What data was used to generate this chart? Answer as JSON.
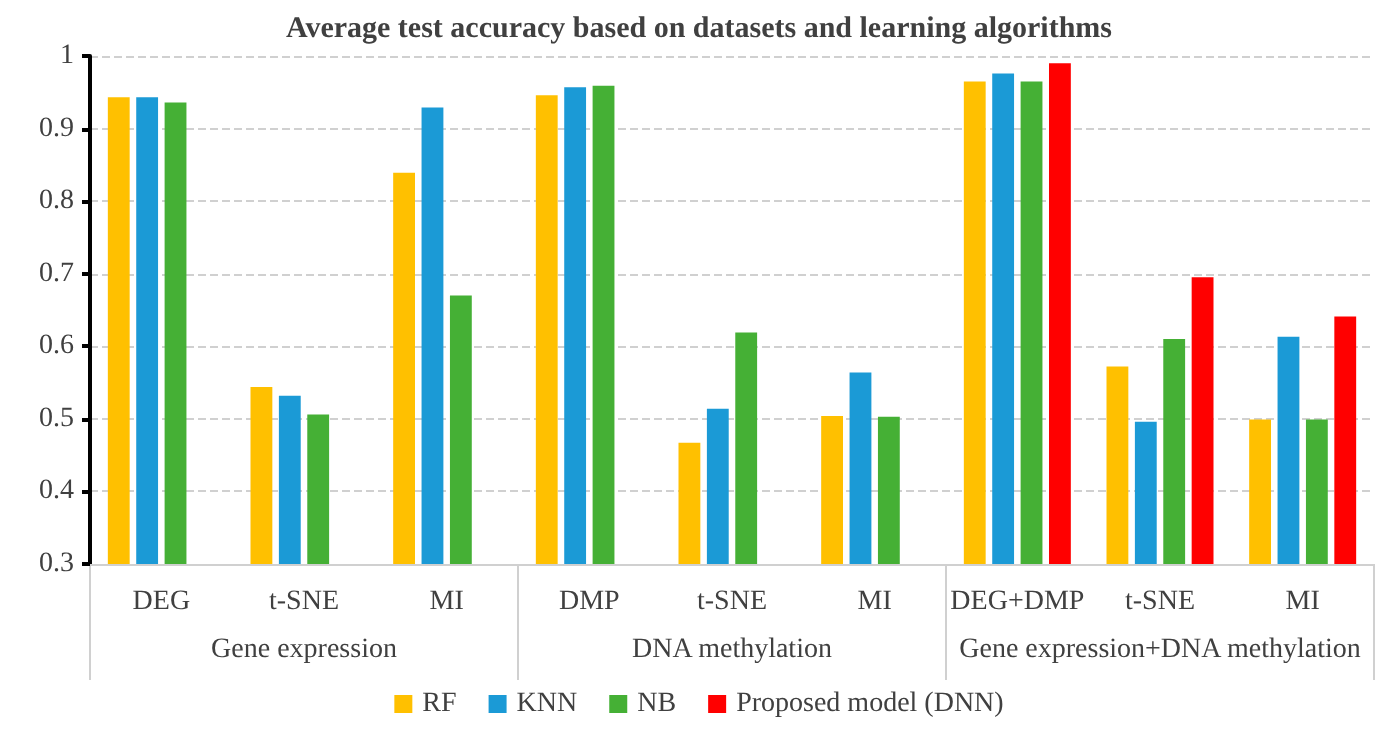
{
  "chart_data": {
    "type": "bar",
    "title": "Average test accuracy based on datasets and learning algorithms",
    "categories": [
      "DEG",
      "t-SNE",
      "MI",
      "DMP",
      "t-SNE",
      "MI",
      "DEG+DMP",
      "t-SNE",
      "MI"
    ],
    "series": [
      {
        "name": "RF",
        "color": "#ffc000",
        "values": [
          0.943,
          0.544,
          0.839,
          0.946,
          0.467,
          0.504,
          0.965,
          0.572,
          0.499
        ]
      },
      {
        "name": "KNN",
        "color": "#1b9ad6",
        "values": [
          0.943,
          0.532,
          0.929,
          0.957,
          0.514,
          0.564,
          0.976,
          0.496,
          0.613
        ]
      },
      {
        "name": "NB",
        "color": "#45b035",
        "values": [
          0.936,
          0.506,
          0.67,
          0.959,
          0.619,
          0.503,
          0.965,
          0.61,
          0.499
        ]
      },
      {
        "name": "Proposed model (DNN)",
        "color": "#ff0000",
        "values": [
          null,
          null,
          null,
          null,
          null,
          null,
          0.99,
          0.695,
          0.641
        ]
      }
    ],
    "annotations": [
      "Gene expression",
      "DNA methylation",
      "Gene expression+DNA methylation"
    ],
    "ylim": [
      0.3,
      1
    ],
    "yticks": [
      0.3,
      0.4,
      0.5,
      0.6,
      0.7,
      0.8,
      0.9,
      1
    ],
    "grid": "y",
    "legend": "bottom"
  }
}
